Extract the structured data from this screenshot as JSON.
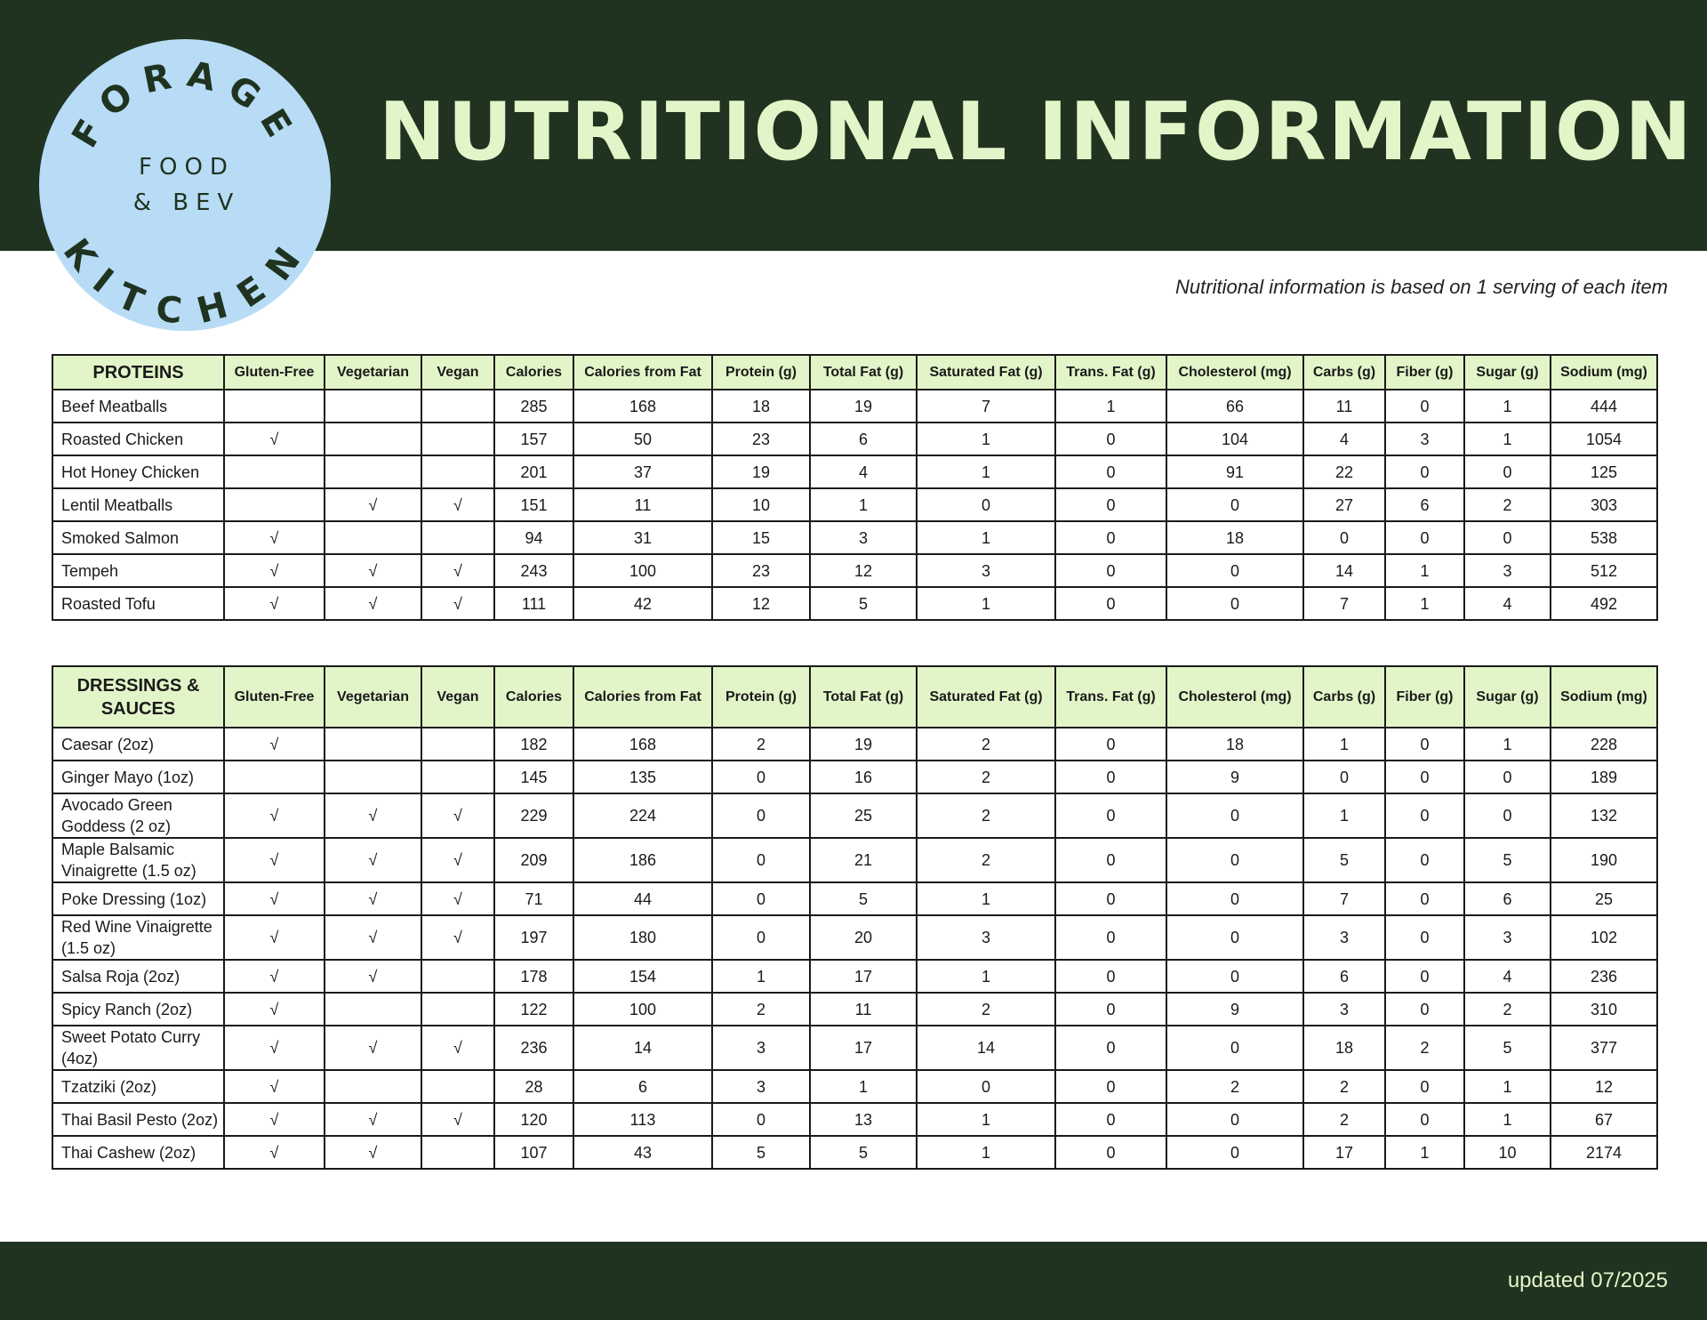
{
  "logo": {
    "top_arc": "FORAGE",
    "bottom_arc": "KITCHEN",
    "line1": "FOOD",
    "line2": "& BEV",
    "circle_color": "#b8dcf5"
  },
  "header": {
    "title": "NUTRITIONAL INFORMATION"
  },
  "note": "Nutritional information is based on 1 serving of each item",
  "footer": {
    "updated": "updated 07/2025"
  },
  "colors": {
    "dark_green": "#1f3320",
    "light_green": "#e2f5c8",
    "light_blue": "#b8dcf5"
  },
  "check_mark": "√",
  "columns": [
    "Gluten-Free",
    "Vegetarian",
    "Vegan",
    "Calories",
    "Calories from Fat",
    "Protein (g)",
    "Total Fat (g)",
    "Saturated Fat (g)",
    "Trans. Fat (g)",
    "Cholesterol (mg)",
    "Carbs (g)",
    "Fiber (g)",
    "Sugar (g)",
    "Sodium (mg)"
  ],
  "tables": [
    {
      "section": "PROTEINS",
      "rows": [
        {
          "name": "Beef Meatballs",
          "gf": false,
          "veg": false,
          "vegan": false,
          "values": [
            "285",
            "168",
            "18",
            "19",
            "7",
            "1",
            "66",
            "11",
            "0",
            "1",
            "444"
          ]
        },
        {
          "name": "Roasted Chicken",
          "gf": true,
          "veg": false,
          "vegan": false,
          "values": [
            "157",
            "50",
            "23",
            "6",
            "1",
            "0",
            "104",
            "4",
            "3",
            "1",
            "1054"
          ]
        },
        {
          "name": "Hot Honey Chicken",
          "gf": false,
          "veg": false,
          "vegan": false,
          "values": [
            "201",
            "37",
            "19",
            "4",
            "1",
            "0",
            "91",
            "22",
            "0",
            "0",
            "125"
          ]
        },
        {
          "name": "Lentil Meatballs",
          "gf": false,
          "veg": true,
          "vegan": true,
          "values": [
            "151",
            "11",
            "10",
            "1",
            "0",
            "0",
            "0",
            "27",
            "6",
            "2",
            "303"
          ]
        },
        {
          "name": "Smoked Salmon",
          "gf": true,
          "veg": false,
          "vegan": false,
          "values": [
            "94",
            "31",
            "15",
            "3",
            "1",
            "0",
            "18",
            "0",
            "0",
            "0",
            "538"
          ]
        },
        {
          "name": "Tempeh",
          "gf": true,
          "veg": true,
          "vegan": true,
          "values": [
            "243",
            "100",
            "23",
            "12",
            "3",
            "0",
            "0",
            "14",
            "1",
            "3",
            "512"
          ]
        },
        {
          "name": "Roasted Tofu",
          "gf": true,
          "veg": true,
          "vegan": true,
          "values": [
            "111",
            "42",
            "12",
            "5",
            "1",
            "0",
            "0",
            "7",
            "1",
            "4",
            "492"
          ]
        }
      ]
    },
    {
      "section": "DRESSINGS & SAUCES",
      "rows": [
        {
          "name": "Caesar (2oz)",
          "gf": true,
          "veg": false,
          "vegan": false,
          "values": [
            "182",
            "168",
            "2",
            "19",
            "2",
            "0",
            "18",
            "1",
            "0",
            "1",
            "228"
          ]
        },
        {
          "name": "Ginger Mayo (1oz)",
          "gf": false,
          "veg": false,
          "vegan": false,
          "values": [
            "145",
            "135",
            "0",
            "16",
            "2",
            "0",
            "9",
            "0",
            "0",
            "0",
            "189"
          ]
        },
        {
          "name": "Avocado Green Goddess (2 oz)",
          "gf": true,
          "veg": true,
          "vegan": true,
          "values": [
            "229",
            "224",
            "0",
            "25",
            "2",
            "0",
            "0",
            "1",
            "0",
            "0",
            "132"
          ]
        },
        {
          "name": "Maple Balsamic Vinaigrette (1.5 oz)",
          "gf": true,
          "veg": true,
          "vegan": true,
          "values": [
            "209",
            "186",
            "0",
            "21",
            "2",
            "0",
            "0",
            "5",
            "0",
            "5",
            "190"
          ]
        },
        {
          "name": "Poke Dressing (1oz)",
          "gf": true,
          "veg": true,
          "vegan": true,
          "values": [
            "71",
            "44",
            "0",
            "5",
            "1",
            "0",
            "0",
            "7",
            "0",
            "6",
            "25"
          ]
        },
        {
          "name": "Red Wine Vinaigrette (1.5 oz)",
          "gf": true,
          "veg": true,
          "vegan": true,
          "values": [
            "197",
            "180",
            "0",
            "20",
            "3",
            "0",
            "0",
            "3",
            "0",
            "3",
            "102"
          ]
        },
        {
          "name": "Salsa Roja (2oz)",
          "gf": true,
          "veg": true,
          "vegan": false,
          "values": [
            "178",
            "154",
            "1",
            "17",
            "1",
            "0",
            "0",
            "6",
            "0",
            "4",
            "236"
          ]
        },
        {
          "name": "Spicy Ranch (2oz)",
          "gf": true,
          "veg": false,
          "vegan": false,
          "values": [
            "122",
            "100",
            "2",
            "11",
            "2",
            "0",
            "9",
            "3",
            "0",
            "2",
            "310"
          ]
        },
        {
          "name": "Sweet Potato Curry (4oz)",
          "gf": true,
          "veg": true,
          "vegan": true,
          "values": [
            "236",
            "14",
            "3",
            "17",
            "14",
            "0",
            "0",
            "18",
            "2",
            "5",
            "377"
          ]
        },
        {
          "name": "Tzatziki (2oz)",
          "gf": true,
          "veg": false,
          "vegan": false,
          "values": [
            "28",
            "6",
            "3",
            "1",
            "0",
            "0",
            "2",
            "2",
            "0",
            "1",
            "12"
          ]
        },
        {
          "name": "Thai Basil Pesto (2oz)",
          "gf": true,
          "veg": true,
          "vegan": true,
          "values": [
            "120",
            "113",
            "0",
            "13",
            "1",
            "0",
            "0",
            "2",
            "0",
            "1",
            "67"
          ]
        },
        {
          "name": "Thai Cashew (2oz)",
          "gf": true,
          "veg": true,
          "vegan": false,
          "values": [
            "107",
            "43",
            "5",
            "5",
            "1",
            "0",
            "0",
            "17",
            "1",
            "10",
            "2174"
          ]
        }
      ]
    }
  ]
}
